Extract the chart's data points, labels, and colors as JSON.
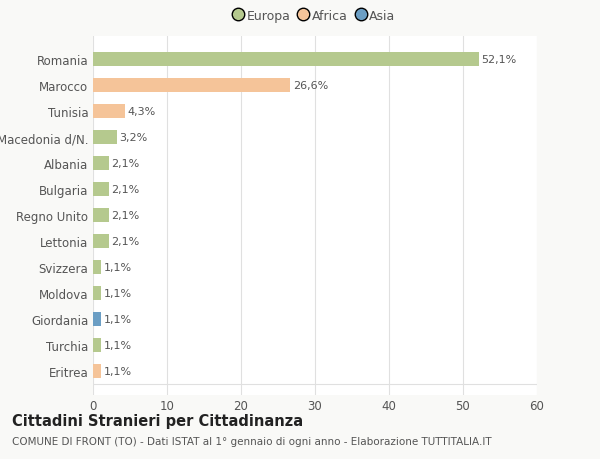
{
  "title": "Cittadini Stranieri per Cittadinanza",
  "subtitle": "COMUNE DI FRONT (TO) - Dati ISTAT al 1° gennaio di ogni anno - Elaborazione TUTTITALIA.IT",
  "categories": [
    "Romania",
    "Marocco",
    "Tunisia",
    "Macedonia d/N.",
    "Albania",
    "Bulgaria",
    "Regno Unito",
    "Lettonia",
    "Svizzera",
    "Moldova",
    "Giordania",
    "Turchia",
    "Eritrea"
  ],
  "values": [
    52.1,
    26.6,
    4.3,
    3.2,
    2.1,
    2.1,
    2.1,
    2.1,
    1.1,
    1.1,
    1.1,
    1.1,
    1.1
  ],
  "labels": [
    "52,1%",
    "26,6%",
    "4,3%",
    "3,2%",
    "2,1%",
    "2,1%",
    "2,1%",
    "2,1%",
    "1,1%",
    "1,1%",
    "1,1%",
    "1,1%",
    "1,1%"
  ],
  "colors": [
    "#b5c98e",
    "#f5c499",
    "#f5c499",
    "#b5c98e",
    "#b5c98e",
    "#b5c98e",
    "#b5c98e",
    "#b5c98e",
    "#b5c98e",
    "#b5c98e",
    "#6b9ec4",
    "#b5c98e",
    "#f5c499"
  ],
  "legend_labels": [
    "Europa",
    "Africa",
    "Asia"
  ],
  "legend_colors": [
    "#b5c98e",
    "#f5c499",
    "#6b9ec4"
  ],
  "xlim": [
    0,
    60
  ],
  "xticks": [
    0,
    10,
    20,
    30,
    40,
    50,
    60
  ],
  "background_color": "#f9f9f7",
  "bar_background": "#ffffff",
  "grid_color": "#e0e0e0",
  "text_color": "#555555",
  "title_fontsize": 10.5,
  "subtitle_fontsize": 7.5,
  "tick_fontsize": 8.5,
  "label_fontsize": 8.0
}
